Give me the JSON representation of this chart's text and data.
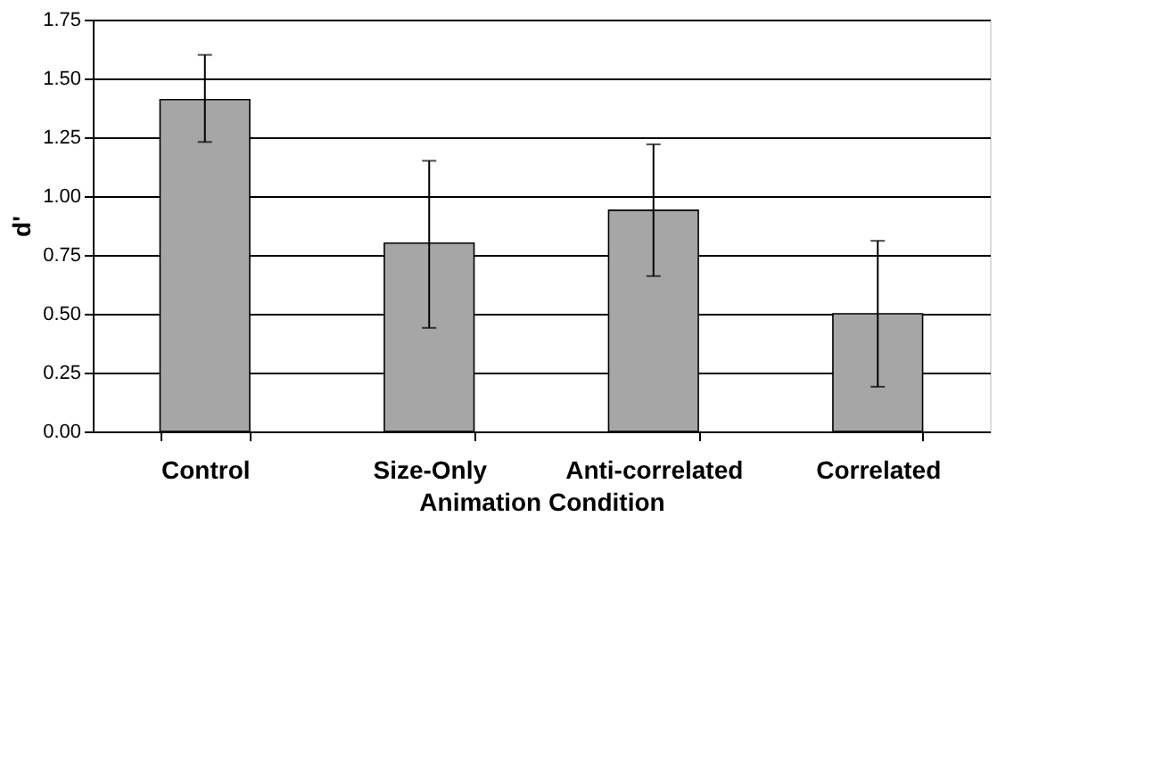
{
  "chart_data": {
    "type": "bar",
    "xlabel": "Animation Condition",
    "ylabel": "d'",
    "categories": [
      "Control",
      "Size-Only",
      "Anti-correlated",
      "Correlated"
    ],
    "values": [
      1.41,
      0.8,
      0.94,
      0.5
    ],
    "errors": [
      [
        1.23,
        1.6
      ],
      [
        0.44,
        1.15
      ],
      [
        0.66,
        1.22
      ],
      [
        0.19,
        0.81
      ]
    ],
    "color": "#a6a6a6",
    "ylim": [
      0,
      1.75
    ],
    "yticks": [
      {
        "value": 0,
        "label": "0.00"
      },
      {
        "value": 0.25,
        "label": "0.25"
      },
      {
        "value": 0.5,
        "label": "0.50"
      },
      {
        "value": 0.75,
        "label": "0.75"
      },
      {
        "value": 1,
        "label": "1.00"
      },
      {
        "value": 1.25,
        "label": "1.25"
      },
      {
        "value": 1.5,
        "label": "1.50"
      },
      {
        "value": 1.75,
        "label": "1.75"
      }
    ],
    "grid": "y"
  }
}
